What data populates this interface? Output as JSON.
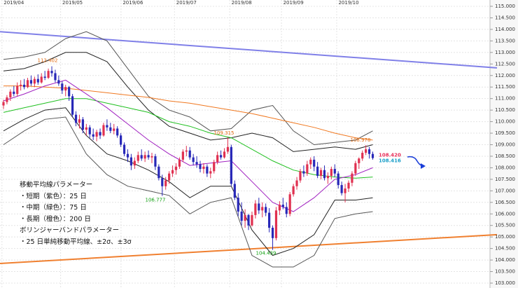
{
  "chart_data": {
    "type": "candlestick",
    "month_ticks": [
      {
        "value": 3,
        "label": "2019/04"
      },
      {
        "value": 20,
        "label": "2019/05"
      },
      {
        "value": 37.5,
        "label": "2019/06"
      },
      {
        "value": 53,
        "label": "2019/07"
      },
      {
        "value": 69,
        "label": "2019/08"
      },
      {
        "value": 84,
        "label": "2019/09"
      },
      {
        "value": 100,
        "label": "2019/10"
      }
    ],
    "ylim": [
      103,
      115
    ],
    "yticks": [
      {
        "value": 115,
        "label": "115.000"
      },
      {
        "value": 114.5,
        "label": "114.500"
      },
      {
        "value": 114,
        "label": "114.000"
      },
      {
        "value": 113.5,
        "label": "113.500"
      },
      {
        "value": 113,
        "label": "113.000"
      },
      {
        "value": 112.5,
        "label": "112.500"
      },
      {
        "value": 112,
        "label": "112.000"
      },
      {
        "value": 111.5,
        "label": "111.500"
      },
      {
        "value": 111,
        "label": "111.000"
      },
      {
        "value": 110.5,
        "label": "110.500"
      },
      {
        "value": 110,
        "label": "110.000"
      },
      {
        "value": 109.5,
        "label": "109.500"
      },
      {
        "value": 109,
        "label": "109.000"
      },
      {
        "value": 108.5,
        "label": "108.500"
      },
      {
        "value": 108,
        "label": "108.000"
      },
      {
        "value": 107.5,
        "label": "107.500"
      },
      {
        "value": 107,
        "label": "107.000"
      },
      {
        "value": 106.5,
        "label": "106.500"
      },
      {
        "value": 106,
        "label": "106.000"
      },
      {
        "value": 105.5,
        "label": "105.500"
      },
      {
        "value": 105,
        "label": "105.000"
      },
      {
        "value": 104.5,
        "label": "104.500"
      },
      {
        "value": 104,
        "label": "104.000"
      },
      {
        "value": 103.5,
        "label": "103.500"
      },
      {
        "value": 103,
        "label": "103.000"
      }
    ],
    "grid": true,
    "up_color": "#e03050",
    "down_color": "#2828b8",
    "candles": [
      [
        110.7,
        110.95,
        110.55,
        110.85
      ],
      [
        110.85,
        111.15,
        110.75,
        111.05
      ],
      [
        111.05,
        111.4,
        110.9,
        111.3
      ],
      [
        111.3,
        111.55,
        111.1,
        111.2
      ],
      [
        111.2,
        111.7,
        111.1,
        111.55
      ],
      [
        111.55,
        111.8,
        111.35,
        111.6
      ],
      [
        111.6,
        111.85,
        111.4,
        111.5
      ],
      [
        111.5,
        111.9,
        111.45,
        111.8
      ],
      [
        111.8,
        112.0,
        111.55,
        111.65
      ],
      [
        111.65,
        111.95,
        111.5,
        111.85
      ],
      [
        111.85,
        112.05,
        111.6,
        111.7
      ],
      [
        111.7,
        112.1,
        111.65,
        111.95
      ],
      [
        111.95,
        112.2,
        111.8,
        111.9
      ],
      [
        111.9,
        112.3,
        111.85,
        112.2
      ],
      [
        112.2,
        112.4,
        111.95,
        112.1
      ],
      [
        112.1,
        112.25,
        111.7,
        111.8
      ],
      [
        111.8,
        112.0,
        111.55,
        111.65
      ],
      [
        111.65,
        111.75,
        111.2,
        111.35
      ],
      [
        111.35,
        111.6,
        111.1,
        111.5
      ],
      [
        111.5,
        111.55,
        110.9,
        111.1
      ],
      [
        111.1,
        111.2,
        110.2,
        110.3
      ],
      [
        110.3,
        110.45,
        109.8,
        109.95
      ],
      [
        109.95,
        110.3,
        109.7,
        110.1
      ],
      [
        110.1,
        110.2,
        109.5,
        109.65
      ],
      [
        109.65,
        109.9,
        109.4,
        109.75
      ],
      [
        109.75,
        109.85,
        109.3,
        109.45
      ],
      [
        109.45,
        109.7,
        109.2,
        109.35
      ],
      [
        109.35,
        109.65,
        109.15,
        109.55
      ],
      [
        109.55,
        109.7,
        109.25,
        109.4
      ],
      [
        109.4,
        109.95,
        109.35,
        109.85
      ],
      [
        109.85,
        110.1,
        109.6,
        109.75
      ],
      [
        109.75,
        109.95,
        109.5,
        109.6
      ],
      [
        109.6,
        109.9,
        109.45,
        109.7
      ],
      [
        109.7,
        109.8,
        109.3,
        109.4
      ],
      [
        109.4,
        109.5,
        108.9,
        109.0
      ],
      [
        109.0,
        109.1,
        108.5,
        108.6
      ],
      [
        108.6,
        108.8,
        108.25,
        108.45
      ],
      [
        108.45,
        108.6,
        107.9,
        108.1
      ],
      [
        108.1,
        108.45,
        107.95,
        108.3
      ],
      [
        108.3,
        108.7,
        108.2,
        108.55
      ],
      [
        108.55,
        108.8,
        108.3,
        108.4
      ],
      [
        108.4,
        108.7,
        108.25,
        108.55
      ],
      [
        108.55,
        108.75,
        108.35,
        108.45
      ],
      [
        108.45,
        108.65,
        108.2,
        108.5
      ],
      [
        108.5,
        108.6,
        107.9,
        108.05
      ],
      [
        108.05,
        108.15,
        107.45,
        107.55
      ],
      [
        107.55,
        107.7,
        106.78,
        107.2
      ],
      [
        107.2,
        107.6,
        107.05,
        107.45
      ],
      [
        107.45,
        107.85,
        107.3,
        107.75
      ],
      [
        107.75,
        108.1,
        107.6,
        107.9
      ],
      [
        107.9,
        108.2,
        107.7,
        108.05
      ],
      [
        108.05,
        108.45,
        107.95,
        108.35
      ],
      [
        108.35,
        108.8,
        108.25,
        108.7
      ],
      [
        108.7,
        108.95,
        108.5,
        108.75
      ],
      [
        108.75,
        108.9,
        108.35,
        108.45
      ],
      [
        108.45,
        108.6,
        108.1,
        108.25
      ],
      [
        108.25,
        108.5,
        108.0,
        108.15
      ],
      [
        108.15,
        108.3,
        107.8,
        107.95
      ],
      [
        107.95,
        108.2,
        107.75,
        108.05
      ],
      [
        108.05,
        108.15,
        107.6,
        107.75
      ],
      [
        107.75,
        108.0,
        107.55,
        107.85
      ],
      [
        107.85,
        108.35,
        107.75,
        108.25
      ],
      [
        108.25,
        108.7,
        108.15,
        108.55
      ],
      [
        108.55,
        108.75,
        108.35,
        108.45
      ],
      [
        108.45,
        108.85,
        108.4,
        108.7
      ],
      [
        108.7,
        109.32,
        108.6,
        108.9
      ],
      [
        108.9,
        109.0,
        107.2,
        107.3
      ],
      [
        107.3,
        107.45,
        106.6,
        106.7
      ],
      [
        106.7,
        106.9,
        105.9,
        106.1
      ],
      [
        106.1,
        106.5,
        105.5,
        105.7
      ],
      [
        105.7,
        106.2,
        105.4,
        105.95
      ],
      [
        105.95,
        106.0,
        105.3,
        105.5
      ],
      [
        105.5,
        106.1,
        105.45,
        105.95
      ],
      [
        105.95,
        106.6,
        105.8,
        106.45
      ],
      [
        106.45,
        106.7,
        106.0,
        106.15
      ],
      [
        106.15,
        106.5,
        105.85,
        106.3
      ],
      [
        106.3,
        106.45,
        105.9,
        106.05
      ],
      [
        106.05,
        106.25,
        105.2,
        105.4
      ],
      [
        105.4,
        105.5,
        104.44,
        104.95
      ],
      [
        104.95,
        106.3,
        104.85,
        106.15
      ],
      [
        106.15,
        106.55,
        105.95,
        106.4
      ],
      [
        106.4,
        106.7,
        106.2,
        106.3
      ],
      [
        106.3,
        106.5,
        105.85,
        106.0
      ],
      [
        106.0,
        106.95,
        105.9,
        106.85
      ],
      [
        106.85,
        107.3,
        106.75,
        107.2
      ],
      [
        107.2,
        107.6,
        107.05,
        107.45
      ],
      [
        107.45,
        107.95,
        107.35,
        107.85
      ],
      [
        107.85,
        108.1,
        107.6,
        107.75
      ],
      [
        107.75,
        108.3,
        107.65,
        108.15
      ],
      [
        108.15,
        108.45,
        107.95,
        108.35
      ],
      [
        108.35,
        108.5,
        107.85,
        108.05
      ],
      [
        108.05,
        108.25,
        107.55,
        107.65
      ],
      [
        107.65,
        108.0,
        107.5,
        107.9
      ],
      [
        107.9,
        108.1,
        107.45,
        107.55
      ],
      [
        107.55,
        107.8,
        107.3,
        107.65
      ],
      [
        107.65,
        108.05,
        107.5,
        107.95
      ],
      [
        107.95,
        108.15,
        107.6,
        107.75
      ],
      [
        107.75,
        107.85,
        107.1,
        107.25
      ],
      [
        107.25,
        107.4,
        106.8,
        106.9
      ],
      [
        106.9,
        107.3,
        106.5,
        107.1
      ],
      [
        107.1,
        107.45,
        106.95,
        107.35
      ],
      [
        107.35,
        107.85,
        107.2,
        107.75
      ],
      [
        107.75,
        108.3,
        107.65,
        108.2
      ],
      [
        108.2,
        108.45,
        107.95,
        108.4
      ],
      [
        108.4,
        108.75,
        108.3,
        108.65
      ],
      [
        108.65,
        108.98,
        108.55,
        108.8
      ],
      [
        108.8,
        108.9,
        108.4,
        108.6
      ],
      [
        108.6,
        108.7,
        108.35,
        108.42
      ]
    ],
    "line_x": [
      0,
      6,
      12,
      18,
      24,
      30,
      36,
      42,
      48,
      54,
      60,
      66,
      72,
      78,
      84,
      90,
      96,
      102,
      107
    ],
    "lines": [
      {
        "color": "#555555",
        "values": [
          112.7,
          112.8,
          113.0,
          113.6,
          113.9,
          113.5,
          112.3,
          111.1,
          110.5,
          110.2,
          109.6,
          109.7,
          110.5,
          110.7,
          109.6,
          109.0,
          109.1,
          109.2,
          109.6
        ]
      },
      {
        "color": "#222222",
        "values": [
          112.2,
          112.3,
          112.6,
          113.0,
          113.0,
          112.6,
          111.5,
          110.5,
          109.8,
          109.5,
          109.2,
          109.3,
          109.5,
          109.3,
          108.7,
          108.8,
          108.9,
          108.8,
          109.0
        ]
      },
      {
        "color": "#222222",
        "values": [
          109.6,
          110.1,
          110.5,
          110.6,
          109.4,
          108.6,
          108.3,
          107.9,
          107.4,
          106.7,
          107.2,
          107.2,
          105.3,
          104.2,
          104.5,
          105.1,
          106.6,
          106.6,
          106.7
        ]
      },
      {
        "color": "#555555",
        "values": [
          109.0,
          109.6,
          110.1,
          110.2,
          108.6,
          107.7,
          107.2,
          107.0,
          106.8,
          106.0,
          106.5,
          106.7,
          104.2,
          103.7,
          103.7,
          104.2,
          105.8,
          106.0,
          106.1
        ]
      },
      {
        "color": "#f07820",
        "values": [
          111.55,
          111.55,
          111.5,
          111.45,
          111.35,
          111.25,
          111.15,
          111.05,
          110.9,
          110.8,
          110.65,
          110.5,
          110.35,
          110.15,
          109.95,
          109.75,
          109.5,
          109.3,
          109.2
        ]
      },
      {
        "color": "#20c020",
        "values": [
          110.4,
          110.6,
          110.8,
          111.0,
          111.0,
          110.8,
          110.6,
          110.4,
          110.0,
          109.8,
          109.5,
          109.3,
          108.8,
          108.3,
          107.9,
          107.7,
          107.6,
          107.55,
          107.6
        ]
      },
      {
        "color": "#a020c0",
        "values": [
          110.9,
          111.2,
          111.55,
          111.8,
          111.2,
          110.6,
          109.9,
          109.2,
          108.6,
          108.1,
          108.2,
          108.3,
          107.4,
          106.5,
          106.1,
          106.7,
          107.5,
          107.7,
          108.0
        ]
      }
    ],
    "trend_lines": [
      {
        "color": "#8080e8",
        "values": [
          113.9,
          112.33
        ]
      },
      {
        "color": "#f08030",
        "values": [
          103.85,
          105.1
        ]
      }
    ],
    "annotations": [
      {
        "value": 112.402,
        "label": "112.402",
        "color": "#e06a10"
      },
      {
        "value": 106.777,
        "label": "106.777",
        "color": "#10a010"
      },
      {
        "value": 109.315,
        "label": "109.315",
        "color": "#e06a10"
      },
      {
        "value": 104.439,
        "label": "104.439",
        "color": "#10a010"
      },
      {
        "value": 108.978,
        "label": "108.978",
        "color": "#e06a10"
      }
    ],
    "price_tags": [
      {
        "value": 108.42,
        "label": "108.420",
        "color": "#e8305a"
      },
      {
        "value": 108.416,
        "label": "108.416",
        "color": "#1a9ec8"
      }
    ],
    "notes": [
      "移動平均線パラメーター",
      "・短期（紫色）：25 日",
      "・中期（緑色）：75 日",
      "・長期（橙色）：200 日",
      "ボリンジャーバンドパラメーター",
      "・25 日単純移動平均線、±2σ、±3σ"
    ]
  }
}
